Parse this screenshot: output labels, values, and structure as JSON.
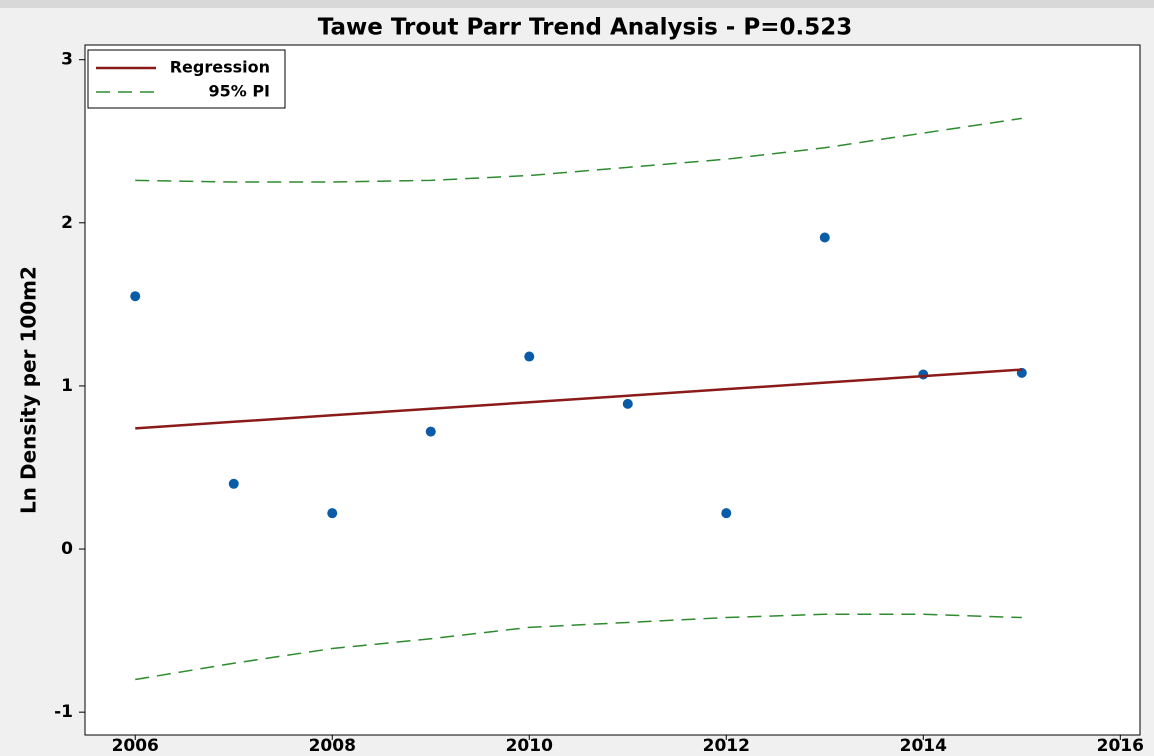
{
  "chart_data": {
    "type": "scatter",
    "title": "Tawe Trout Parr Trend Analysis - P=0.523",
    "y_label": "Ln Density per 100m2",
    "x": [
      2006,
      2007,
      2008,
      2009,
      2010,
      2011,
      2012,
      2013,
      2014,
      2015
    ],
    "xlim": [
      2005.49,
      2016.2
    ],
    "xticks": [
      2006,
      2008,
      2010,
      2012,
      2014,
      2016
    ],
    "ylim": [
      -1.14,
      3.09
    ],
    "yticks": [
      -1,
      0,
      1,
      2,
      3
    ],
    "grid": false,
    "legend": "top-left",
    "series": [
      {
        "type": "scatter",
        "color": "#0a5ba8",
        "values": [
          1.55,
          0.4,
          0.22,
          0.72,
          1.18,
          0.89,
          0.22,
          1.91,
          1.07,
          1.08
        ]
      },
      {
        "type": "line",
        "name": "Regression",
        "color": "#8b1a1a",
        "dash": "solid",
        "values": [
          0.74,
          0.78,
          0.82,
          0.86,
          0.9,
          0.94,
          0.98,
          1.02,
          1.06,
          1.1
        ]
      },
      {
        "type": "band",
        "name": "95% PI",
        "color": "#2e8b2e",
        "dash": "dashed",
        "values": [
          2.26,
          2.25,
          2.25,
          2.26,
          2.29,
          2.34,
          2.39,
          2.46,
          2.55,
          2.64
        ],
        "lower": [
          -0.8,
          -0.7,
          -0.61,
          -0.55,
          -0.48,
          -0.45,
          -0.42,
          -0.4,
          -0.4,
          -0.42
        ]
      }
    ]
  }
}
